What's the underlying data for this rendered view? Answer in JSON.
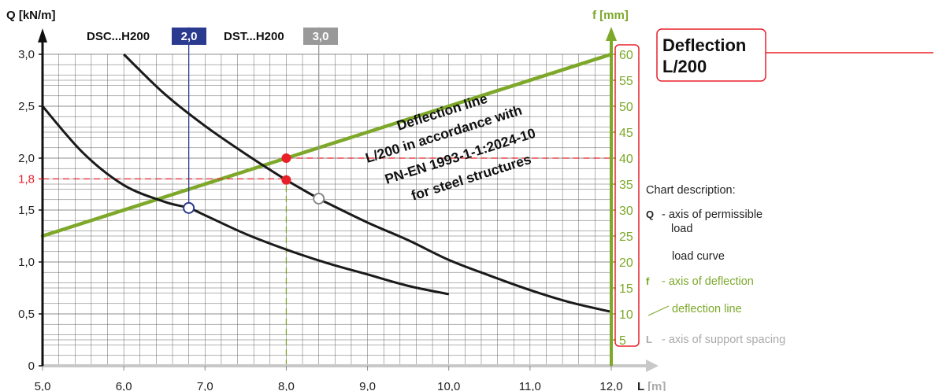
{
  "chart_data": {
    "type": "line",
    "x_axis": {
      "label": "L [m]",
      "ticks": [
        "5,0",
        "6,0",
        "7,0",
        "8,0",
        "9,0",
        "10,0",
        "11,0",
        "12,0"
      ],
      "tick_values": [
        5,
        6,
        7,
        8,
        9,
        10,
        11,
        12
      ],
      "range": [
        5.0,
        12.0
      ]
    },
    "y_axis": {
      "label": "Q [kN/m]",
      "ticks": [
        "0",
        "0,5",
        "1,0",
        "1,5",
        "2,0",
        "2,5",
        "3,0"
      ],
      "tick_values": [
        0,
        0.5,
        1.0,
        1.5,
        2.0,
        2.5,
        3.0
      ],
      "range": [
        0,
        3.0
      ],
      "highlight_tick": "1,8",
      "highlight_value": 1.8
    },
    "y2_axis": {
      "label": "f [mm]",
      "ticks": [
        "5",
        "10",
        "15",
        "20",
        "25",
        "30",
        "35",
        "40",
        "45",
        "50",
        "55",
        "60"
      ],
      "tick_values": [
        5,
        10,
        15,
        20,
        25,
        30,
        35,
        40,
        45,
        50,
        55,
        60
      ],
      "range": [
        0,
        60
      ]
    },
    "grid": true,
    "series": [
      {
        "name": "DSC...H200",
        "badge": "2,0",
        "color": "#1a1a1a",
        "x": [
          5.0,
          5.5,
          6.0,
          6.5,
          6.8,
          7.0,
          7.5,
          8.0,
          8.5,
          9.0,
          9.5,
          10.0
        ],
        "y": [
          2.5,
          2.05,
          1.74,
          1.58,
          1.52,
          1.45,
          1.27,
          1.12,
          0.99,
          0.88,
          0.77,
          0.69
        ]
      },
      {
        "name": "DST...H200",
        "badge": "3,0",
        "color": "#1a1a1a",
        "x": [
          6.0,
          6.5,
          7.0,
          7.5,
          8.0,
          8.4,
          8.5,
          9.0,
          9.5,
          10.0,
          10.5,
          11.0,
          11.5,
          12.0
        ],
        "y": [
          3.0,
          2.62,
          2.31,
          2.04,
          1.79,
          1.61,
          1.57,
          1.38,
          1.21,
          1.02,
          0.87,
          0.73,
          0.61,
          0.52
        ]
      }
    ],
    "deflection_line": {
      "x": [
        5.0,
        12.0
      ],
      "f_mm": [
        25,
        60
      ],
      "color": "#7da82a"
    },
    "markers": [
      {
        "x": 6.8,
        "y": 1.52,
        "style": "hollow",
        "color": "#2a3a8f"
      },
      {
        "x": 8.4,
        "y": 1.61,
        "style": "hollow",
        "color": "#888888"
      },
      {
        "x": 8.0,
        "y": 1.79,
        "style": "filled",
        "color": "#e8202a"
      },
      {
        "x": 8.0,
        "y": 2.0,
        "style": "filled",
        "color": "#e8202a"
      }
    ],
    "guides": [
      {
        "orientation": "horizontal",
        "y": 1.8,
        "from_x": 5.0,
        "to_x": 8.0,
        "style": "dashed",
        "color": "#e8202a"
      },
      {
        "orientation": "horizontal",
        "y": 2.0,
        "from_x": 8.0,
        "to_x": 12.0,
        "style": "dashed",
        "color": "#e8202a"
      },
      {
        "orientation": "vertical",
        "x": 8.0,
        "from_y": 0,
        "to_y": 1.8,
        "style": "dashed",
        "color": "#7da82a"
      },
      {
        "orientation": "vertical",
        "x": 6.8,
        "from_y": 1.52,
        "to_y": 3.26,
        "style": "solid",
        "color": "#2a3a8f"
      },
      {
        "orientation": "vertical",
        "x": 8.4,
        "from_y": 1.61,
        "to_y": 3.26,
        "style": "solid",
        "color": "#999999"
      }
    ],
    "annotation_lines": [
      "Deflection line",
      "L/200 in accordance with",
      "PN-EN 1993-1-1:2024-10",
      "for steel structures"
    ],
    "title_box": {
      "line1": "Deflection",
      "line2": "L/200"
    }
  },
  "legend": {
    "heading": "Chart description:",
    "items": [
      {
        "symbol": "Q",
        "text": "- axis of permissible",
        "text2": "load",
        "color": "#222222"
      },
      {
        "symbol": "",
        "text": "load curve",
        "color": "#222222"
      },
      {
        "symbol": "f",
        "text": "- axis of deflection",
        "color": "#7da82a"
      },
      {
        "symbol": "",
        "text": "deflection line",
        "color": "#7da82a"
      },
      {
        "symbol": "L",
        "text": "- axis of support spacing",
        "color": "#aaaaaa"
      }
    ]
  },
  "colors": {
    "green": "#7da82a",
    "red": "#e8202a",
    "navy": "#2a3a8f",
    "gray": "#999999",
    "axis_gray": "#c8c8c8"
  }
}
